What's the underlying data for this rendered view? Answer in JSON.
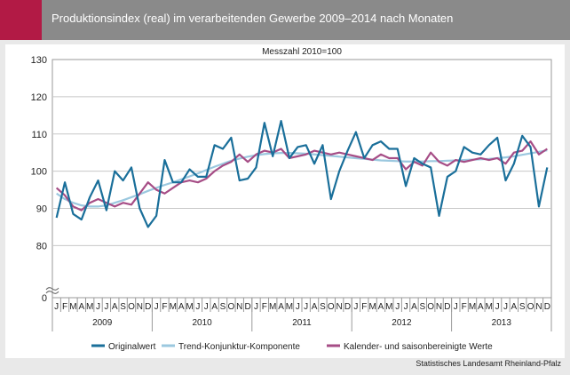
{
  "header": {
    "title": "Produktionsindex (real) im verarbeitenden Gewerbe 2009–2014 nach Monaten",
    "accent_color": "#b21a45",
    "bar_color": "#8a8a8a"
  },
  "chart_data": {
    "type": "line",
    "subtitle": "Messzahl 2010=100",
    "ylim": [
      0,
      130
    ],
    "axis_break": true,
    "y_ticks": [
      0,
      80,
      90,
      100,
      110,
      120,
      130
    ],
    "grid": true,
    "legend_position": "bottom",
    "months": [
      "J",
      "F",
      "M",
      "A",
      "M",
      "J",
      "J",
      "A",
      "S",
      "O",
      "N",
      "D"
    ],
    "years": [
      "2009",
      "2010",
      "2011",
      "2012",
      "2013"
    ],
    "x_start": "2009-01",
    "series": [
      {
        "name": "Originalwert",
        "color": "#1a6f9a",
        "values": [
          87.5,
          97,
          88.5,
          87,
          93,
          97.5,
          89.5,
          100,
          97.5,
          101,
          90,
          85,
          88,
          103,
          97,
          97,
          100.5,
          98.5,
          98.5,
          107,
          106,
          109,
          97.5,
          98,
          101,
          113,
          104,
          113.5,
          103.5,
          106.5,
          107,
          102,
          107,
          92.5,
          100,
          105.5,
          110.5,
          103.5,
          107,
          108,
          106,
          106,
          96,
          103.5,
          102,
          101,
          88,
          98.5,
          100,
          106.5,
          105,
          104.5,
          107,
          109,
          97.5,
          102,
          109.5,
          106.5,
          90.5,
          101
        ]
      },
      {
        "name": "Trend-Konjunktur-Komponente",
        "color": "#9bc8df",
        "values": [
          94,
          92.5,
          91.5,
          90.8,
          90.5,
          90.5,
          90.8,
          91.5,
          92.2,
          93,
          93.8,
          94.7,
          95.5,
          96.3,
          97,
          97.8,
          98.6,
          99.4,
          100.3,
          101.2,
          102,
          102.8,
          103.4,
          103.9,
          104.3,
          104.6,
          104.8,
          104.9,
          104.9,
          104.8,
          104.7,
          104.5,
          104.3,
          104.1,
          103.9,
          103.7,
          103.5,
          103.3,
          103.1,
          102.9,
          102.8,
          102.7,
          102.6,
          102.6,
          102.6,
          102.7,
          102.7,
          102.8,
          102.9,
          103,
          103.1,
          103.2,
          103.3,
          103.5,
          103.7,
          104,
          104.4,
          104.8,
          105.2,
          105.6
        ]
      },
      {
        "name": "Kalender- und saisonbereinigte Werte",
        "color": "#a64d86",
        "values": [
          95.5,
          93.5,
          90.5,
          89.5,
          91.5,
          92.5,
          91.5,
          90.5,
          91.5,
          91,
          94,
          97,
          95,
          94,
          95.5,
          97,
          97.5,
          97,
          98,
          100,
          101.5,
          102.5,
          104.5,
          102.5,
          104.5,
          105.5,
          105,
          106,
          103.5,
          104,
          104.5,
          105.5,
          105,
          104.5,
          105,
          104.5,
          104,
          103.5,
          103,
          104.5,
          103.5,
          103.5,
          100.5,
          102.5,
          101.5,
          105,
          102.5,
          101.5,
          103,
          102.5,
          103,
          103.5,
          103,
          103.5,
          102,
          105,
          105.5,
          108,
          104.5,
          106
        ]
      }
    ]
  },
  "source": "Statistisches Landesamt Rheinland-Pfalz"
}
